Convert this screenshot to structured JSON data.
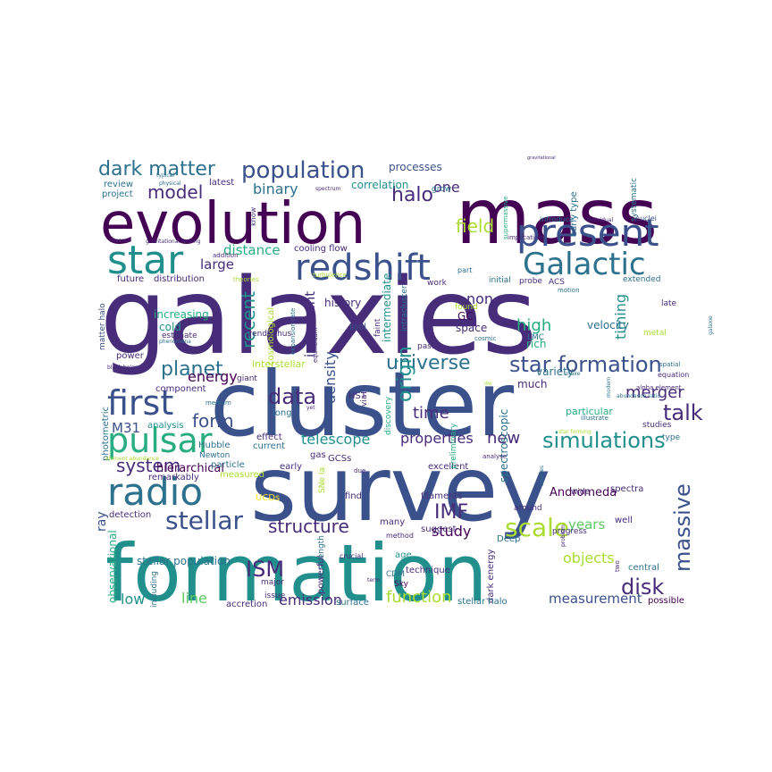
{
  "palette": {
    "v1": "#440154",
    "v2": "#472c7a",
    "v3": "#3b518b",
    "v4": "#2c718e",
    "v5": "#21908d",
    "v6": "#27ad81",
    "v7": "#5cc863",
    "v8": "#aadc32",
    "v9": "#fde725"
  },
  "words": [
    {
      "text": "galaxies",
      "color": "v2"
    },
    {
      "text": "mass",
      "color": "v1"
    },
    {
      "text": "evolution",
      "color": "v1"
    },
    {
      "text": "cluster",
      "color": "v3"
    },
    {
      "text": "survey",
      "color": "v3"
    },
    {
      "text": "formation",
      "color": "v5"
    },
    {
      "text": "present",
      "color": "v3"
    },
    {
      "text": "redshift",
      "color": "v3"
    },
    {
      "text": "Galactic",
      "color": "v4"
    },
    {
      "text": "star",
      "color": "v5"
    },
    {
      "text": "population",
      "color": "v3"
    },
    {
      "text": "dark matter",
      "color": "v4"
    },
    {
      "text": "model",
      "color": "v2"
    },
    {
      "text": "halo",
      "color": "v2"
    },
    {
      "text": "first",
      "color": "v3"
    },
    {
      "text": "pulsar",
      "color": "v6"
    },
    {
      "text": "radio",
      "color": "v4"
    },
    {
      "text": "planet",
      "color": "v4"
    },
    {
      "text": "universe",
      "color": "v4"
    },
    {
      "text": "star formation",
      "color": "v3"
    },
    {
      "text": "simulations",
      "color": "v5"
    },
    {
      "text": "talk",
      "color": "v2"
    },
    {
      "text": "stellar",
      "color": "v3"
    },
    {
      "text": "structure",
      "color": "v2"
    },
    {
      "text": "IMF",
      "color": "v2"
    },
    {
      "text": "scale",
      "color": "v8"
    },
    {
      "text": "massive",
      "color": "v3"
    },
    {
      "text": "disk",
      "color": "v2"
    },
    {
      "text": "ISM",
      "color": "v2"
    },
    {
      "text": "data",
      "color": "v2"
    },
    {
      "text": "system",
      "color": "v2"
    },
    {
      "text": "form",
      "color": "v3"
    },
    {
      "text": "recent",
      "color": "v5"
    },
    {
      "text": "field",
      "color": "v8"
    },
    {
      "text": "origin",
      "color": "v5"
    },
    {
      "text": "time",
      "color": "v2"
    },
    {
      "text": "new",
      "color": "v2"
    },
    {
      "text": "merger",
      "color": "v2"
    },
    {
      "text": "telescope",
      "color": "v5"
    },
    {
      "text": "properties",
      "color": "v2"
    },
    {
      "text": "density",
      "color": "v3"
    },
    {
      "text": "binary",
      "color": "v4"
    },
    {
      "text": "large",
      "color": "v2"
    },
    {
      "text": "one",
      "color": "v2"
    },
    {
      "text": "non",
      "color": "v2"
    },
    {
      "text": "high",
      "color": "v6"
    },
    {
      "text": "timing",
      "color": "v5"
    },
    {
      "text": "energy",
      "color": "v1"
    },
    {
      "text": "emission",
      "color": "v2"
    },
    {
      "text": "function",
      "color": "v8"
    },
    {
      "text": "measurement",
      "color": "v3"
    },
    {
      "text": "line",
      "color": "v7"
    },
    {
      "text": "low",
      "color": "v5"
    },
    {
      "text": "study",
      "color": "v1"
    },
    {
      "text": "years",
      "color": "v7"
    },
    {
      "text": "objects",
      "color": "v8"
    },
    {
      "text": "hierarchical",
      "color": "v1"
    },
    {
      "text": "distance",
      "color": "v6"
    },
    {
      "text": "important",
      "color": "v2"
    },
    {
      "text": "Andromeda",
      "color": "v1"
    },
    {
      "text": "stellar population",
      "color": "v4"
    },
    {
      "text": "observational",
      "color": "v6"
    },
    {
      "text": "ray",
      "color": "v3"
    },
    {
      "text": "M31",
      "color": "v3"
    },
    {
      "text": "cold",
      "color": "v5"
    },
    {
      "text": "increasing",
      "color": "v6"
    },
    {
      "text": "history",
      "color": "v2"
    },
    {
      "text": "space",
      "color": "v2"
    },
    {
      "text": "GC",
      "color": "v1"
    },
    {
      "text": "velocity",
      "color": "v4"
    },
    {
      "text": "rich",
      "color": "v6"
    },
    {
      "text": "much",
      "color": "v2"
    },
    {
      "text": "variety",
      "color": "v4"
    },
    {
      "text": "spectroscopic",
      "color": "v4"
    },
    {
      "text": "intermediate",
      "color": "v5"
    },
    {
      "text": "processes",
      "color": "v3"
    },
    {
      "text": "correlation",
      "color": "v5"
    },
    {
      "text": "review",
      "color": "v4"
    },
    {
      "text": "project",
      "color": "v4"
    },
    {
      "text": "latest",
      "color": "v2"
    },
    {
      "text": "cooling flow",
      "color": "v2"
    },
    {
      "text": "distribution",
      "color": "v2"
    },
    {
      "text": "future",
      "color": "v2"
    },
    {
      "text": "matter halo",
      "color": "v3"
    },
    {
      "text": "estimate",
      "color": "v2"
    },
    {
      "text": "power",
      "color": "v2"
    },
    {
      "text": "analysis",
      "color": "v5"
    },
    {
      "text": "photometric",
      "color": "v4"
    },
    {
      "text": "component",
      "color": "v2"
    },
    {
      "text": "interstellar",
      "color": "v8"
    },
    {
      "text": "long",
      "color": "v4"
    },
    {
      "text": "HST",
      "color": "v2"
    },
    {
      "text": "effect",
      "color": "v2"
    },
    {
      "text": "current",
      "color": "v4"
    },
    {
      "text": "Hubble",
      "color": "v4"
    },
    {
      "text": "Newton",
      "color": "v4"
    },
    {
      "text": "GCSs",
      "color": "v2"
    },
    {
      "text": "gas",
      "color": "v2"
    },
    {
      "text": "early",
      "color": "v2"
    },
    {
      "text": "particle",
      "color": "v4"
    },
    {
      "text": "measured",
      "color": "v8"
    },
    {
      "text": "remarkably",
      "color": "v2"
    },
    {
      "text": "UCDs",
      "color": "v9"
    },
    {
      "text": "detection",
      "color": "v2"
    },
    {
      "text": "including",
      "color": "v4"
    },
    {
      "text": "major",
      "color": "v2"
    },
    {
      "text": "issue",
      "color": "v2"
    },
    {
      "text": "accretion",
      "color": "v2"
    },
    {
      "text": "surface",
      "color": "v4"
    },
    {
      "text": "powerful",
      "color": "v2"
    },
    {
      "text": "CDM",
      "color": "v4"
    },
    {
      "text": "Sky",
      "color": "v1"
    },
    {
      "text": "technique",
      "color": "v2"
    },
    {
      "text": "age",
      "color": "v5"
    },
    {
      "text": "filaments",
      "color": "v2"
    },
    {
      "text": "find",
      "color": "v2"
    },
    {
      "text": "excellent",
      "color": "v2"
    },
    {
      "text": "suggest",
      "color": "v2"
    },
    {
      "text": "many",
      "color": "v2"
    },
    {
      "text": "method",
      "color": "v2"
    },
    {
      "text": "dark energy",
      "color": "v2"
    },
    {
      "text": "Deep",
      "color": "v4"
    },
    {
      "text": "progress",
      "color": "v2"
    },
    {
      "text": "well",
      "color": "v2"
    },
    {
      "text": "wide",
      "color": "v2"
    },
    {
      "text": "around",
      "color": "v2"
    },
    {
      "text": "central",
      "color": "v4"
    },
    {
      "text": "spectra",
      "color": "v2"
    },
    {
      "text": "possible",
      "color": "v1"
    },
    {
      "text": "stellar halo",
      "color": "v4"
    },
    {
      "text": "type",
      "color": "v4"
    },
    {
      "text": "studies",
      "color": "v2"
    },
    {
      "text": "particular",
      "color": "v6"
    },
    {
      "text": "late",
      "color": "v2"
    },
    {
      "text": "metal",
      "color": "v8"
    },
    {
      "text": "equation",
      "color": "v2"
    },
    {
      "text": "alpha element",
      "color": "v2"
    },
    {
      "text": "early type",
      "color": "v4"
    },
    {
      "text": "systematic",
      "color": "v4"
    },
    {
      "text": "supermassive",
      "color": "v6"
    },
    {
      "text": "nuclei",
      "color": "v3"
    },
    {
      "text": "individual",
      "color": "v2"
    },
    {
      "text": "introduce",
      "color": "v4"
    },
    {
      "text": "implications",
      "color": "v2"
    },
    {
      "text": "extended",
      "color": "v4"
    },
    {
      "text": "ACS",
      "color": "v2"
    },
    {
      "text": "probe",
      "color": "v2"
    },
    {
      "text": "motion",
      "color": "v4"
    },
    {
      "text": "LMC",
      "color": "v4"
    },
    {
      "text": "initial",
      "color": "v4"
    },
    {
      "text": "part",
      "color": "v4"
    },
    {
      "text": "work",
      "color": "v2"
    },
    {
      "text": "found",
      "color": "v8"
    },
    {
      "text": "intracluster",
      "color": "v4"
    },
    {
      "text": "faint",
      "color": "v2"
    },
    {
      "text": "tool",
      "color": "v3"
    },
    {
      "text": "past",
      "color": "v2"
    },
    {
      "text": "cosmological",
      "color": "v8"
    },
    {
      "text": "expansion rate",
      "color": "v4"
    },
    {
      "text": "equilibrium",
      "color": "v2"
    },
    {
      "text": "cosmic",
      "color": "v4"
    },
    {
      "text": "trends thus",
      "color": "v2"
    },
    {
      "text": "giant",
      "color": "v2"
    },
    {
      "text": "phenomena",
      "color": "v4"
    },
    {
      "text": "black holes",
      "color": "v2"
    },
    {
      "text": "element abundance",
      "color": "v8"
    },
    {
      "text": "medium",
      "color": "v4"
    },
    {
      "text": "yet",
      "color": "v2"
    },
    {
      "text": "via",
      "color": "v2"
    },
    {
      "text": "discovery",
      "color": "v6"
    },
    {
      "text": "preliminary",
      "color": "v6"
    },
    {
      "text": "SNe Ia",
      "color": "v8"
    },
    {
      "text": "strength",
      "color": "v4"
    },
    {
      "text": "due",
      "color": "v2"
    },
    {
      "text": "crucial",
      "color": "v2"
    },
    {
      "text": "masses",
      "color": "v2"
    },
    {
      "text": "gravitational lensing",
      "color": "v2"
    },
    {
      "text": "addition",
      "color": "v2"
    },
    {
      "text": "theories",
      "color": "v8"
    },
    {
      "text": "turbulence",
      "color": "v8"
    },
    {
      "text": "know",
      "color": "v2"
    },
    {
      "text": "typical",
      "color": "v4"
    },
    {
      "text": "physical",
      "color": "v4"
    },
    {
      "text": "spectrum",
      "color": "v2"
    },
    {
      "text": "grow",
      "color": "v4"
    },
    {
      "text": "gravitational",
      "color": "v2"
    },
    {
      "text": "abundance ratio",
      "color": "v4"
    },
    {
      "text": "illustrate",
      "color": "v4"
    },
    {
      "text": "modern",
      "color": "v4"
    },
    {
      "text": "spatial",
      "color": "v4"
    },
    {
      "text": "make",
      "color": "v4"
    },
    {
      "text": "dw",
      "color": "v8"
    },
    {
      "text": "star forming",
      "color": "v8"
    },
    {
      "text": "problem",
      "color": "v2"
    },
    {
      "text": "two",
      "color": "v2"
    },
    {
      "text": "sources",
      "color": "v4"
    },
    {
      "text": "analyse",
      "color": "v2"
    },
    {
      "text": "term",
      "color": "v2"
    },
    {
      "text": "galaxie",
      "color": "v4"
    }
  ]
}
